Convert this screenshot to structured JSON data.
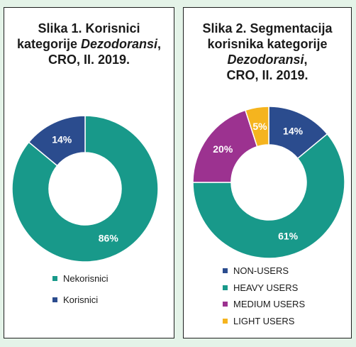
{
  "chart_data": [
    {
      "type": "pie",
      "title": [
        "Slika 1. Korisnici",
        "kategorije",
        "Dezodoransi",
        ",",
        "CRO, II. 2019."
      ],
      "categories": [
        "Nekorisnici",
        "Korisnici"
      ],
      "values": [
        86,
        14
      ],
      "value_labels": [
        "86%",
        "14%"
      ],
      "colors": [
        "#18998a",
        "#2b4c8e"
      ],
      "legend": [
        "Nekorisnici",
        "Korisnici"
      ],
      "legend_position": "bottom"
    },
    {
      "type": "pie",
      "title": [
        "Slika 2. Segmentacija",
        "korisnika kategorije",
        "Dezodoransi",
        ",",
        "CRO, II. 2019."
      ],
      "categories": [
        "NON-USERS",
        "HEAVY USERS",
        "MEDIUM USERS",
        "LIGHT USERS"
      ],
      "values": [
        14,
        61,
        20,
        5
      ],
      "value_labels": [
        "14%",
        "61%",
        "20%",
        "5%"
      ],
      "colors": [
        "#2b4c8e",
        "#18998a",
        "#9c3290",
        "#f5b41e"
      ],
      "legend": [
        "NON-USERS",
        "HEAVY USERS",
        "MEDIUM USERS",
        "LIGHT USERS"
      ],
      "legend_position": "bottom"
    }
  ]
}
